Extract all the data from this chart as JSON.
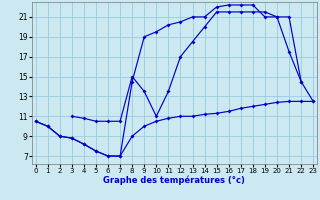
{
  "xlabel": "Graphe des températures (°c)",
  "xlim": [
    -0.3,
    23.3
  ],
  "ylim": [
    6.2,
    22.5
  ],
  "xticks": [
    0,
    1,
    2,
    3,
    4,
    5,
    6,
    7,
    8,
    9,
    10,
    11,
    12,
    13,
    14,
    15,
    16,
    17,
    18,
    19,
    20,
    21,
    22,
    23
  ],
  "yticks": [
    7,
    9,
    11,
    13,
    15,
    17,
    19,
    21
  ],
  "bg_color": "#cce8f0",
  "grid_color": "#99cce0",
  "line_color": "#0000cc",
  "line1_x": [
    0,
    1,
    2,
    3,
    4,
    5,
    6,
    7,
    8,
    9,
    10,
    11,
    12,
    13,
    14,
    15,
    16,
    17,
    18,
    19,
    20,
    21,
    22,
    23
  ],
  "line1_y": [
    10.5,
    10.0,
    9.0,
    8.8,
    8.2,
    7.5,
    7.0,
    7.0,
    9.0,
    10.0,
    10.5,
    10.8,
    11.0,
    11.0,
    11.2,
    11.3,
    11.5,
    11.8,
    12.0,
    12.2,
    12.4,
    12.5,
    12.5,
    12.5
  ],
  "line2_x": [
    0,
    1,
    2,
    3,
    4,
    5,
    6,
    7,
    8,
    9,
    10,
    11,
    12,
    13,
    14,
    15,
    16,
    17,
    18,
    19,
    20,
    21,
    22,
    23
  ],
  "line2_y": [
    10.5,
    10.0,
    9.0,
    8.8,
    8.2,
    7.5,
    7.0,
    7.0,
    14.5,
    19.0,
    19.5,
    20.2,
    20.5,
    21.0,
    21.0,
    22.0,
    22.2,
    22.2,
    22.2,
    21.0,
    21.0,
    17.5,
    14.5,
    12.5
  ],
  "line3_x": [
    3,
    4,
    5,
    6,
    7,
    8,
    9,
    10,
    11,
    12,
    13,
    14,
    15,
    16,
    17,
    18,
    19,
    20,
    21,
    22
  ],
  "line3_y": [
    11.0,
    10.8,
    10.5,
    10.5,
    10.5,
    15.0,
    13.5,
    11.0,
    13.5,
    17.0,
    18.5,
    20.0,
    21.5,
    21.5,
    21.5,
    21.5,
    21.5,
    21.0,
    21.0,
    14.5
  ]
}
